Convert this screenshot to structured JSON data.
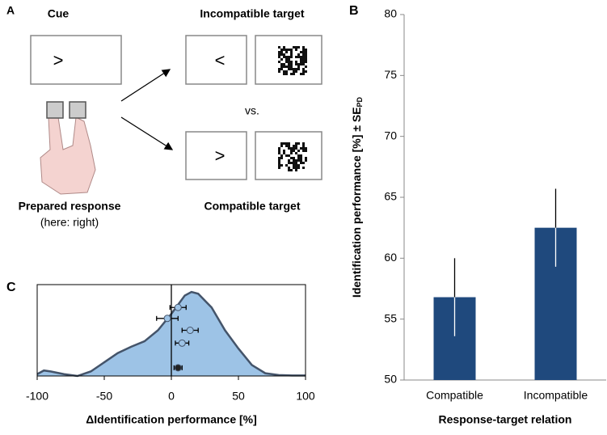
{
  "panel_a": {
    "letter": "A",
    "cue": "Cue",
    "cue_symbol": ">",
    "incompatible_label": "Incompatible target",
    "incompatible_symbol": "<",
    "vs": "vs.",
    "compatible_label": "Compatible target",
    "compatible_symbol": ">",
    "response_label": "Prepared response",
    "response_note": "(here: right)"
  },
  "chart_data": [
    {
      "type": "bar",
      "panel": "B",
      "categories": [
        "Compatible",
        "Incompatible"
      ],
      "values": [
        56.8,
        62.5
      ],
      "errors": [
        3.2,
        3.2
      ],
      "color": "#1f497d",
      "ylim": [
        50,
        80
      ],
      "yticks": [
        50,
        55,
        60,
        65,
        70,
        75,
        80
      ],
      "ylabel": "Identification performance [%] ± SE",
      "ylabel_subscript": "PD",
      "xlabel": "Response-target relation"
    },
    {
      "type": "density",
      "panel": "C",
      "xlim": [
        -100,
        100
      ],
      "xticks": [
        -100,
        -50,
        0,
        50,
        100
      ],
      "ylim": [
        0,
        1
      ],
      "xlabel": "ΔIdentification performance [%]",
      "fill": "#9dc3e6",
      "line_color": "#44546a",
      "x": [
        -100,
        -95,
        -90,
        -80,
        -70,
        -60,
        -50,
        -40,
        -30,
        -20,
        -10,
        0,
        10,
        15,
        20,
        30,
        40,
        50,
        60,
        70,
        80,
        90,
        100
      ],
      "values": [
        0.02,
        0.06,
        0.05,
        0.02,
        0.0,
        0.05,
        0.15,
        0.25,
        0.32,
        0.38,
        0.5,
        0.68,
        0.88,
        0.92,
        0.9,
        0.75,
        0.5,
        0.3,
        0.12,
        0.03,
        0.01,
        0.005,
        0.005
      ],
      "points": {
        "x": [
          5,
          -3,
          14,
          8,
          5
        ],
        "y": [
          0.75,
          0.63,
          0.5,
          0.36,
          0.09
        ],
        "xerr": [
          6,
          8,
          6,
          5,
          3
        ],
        "colors": [
          "#9dc3e6",
          "#9dc3e6",
          "#9dc3e6",
          "#9dc3e6",
          "#222222"
        ]
      }
    }
  ]
}
